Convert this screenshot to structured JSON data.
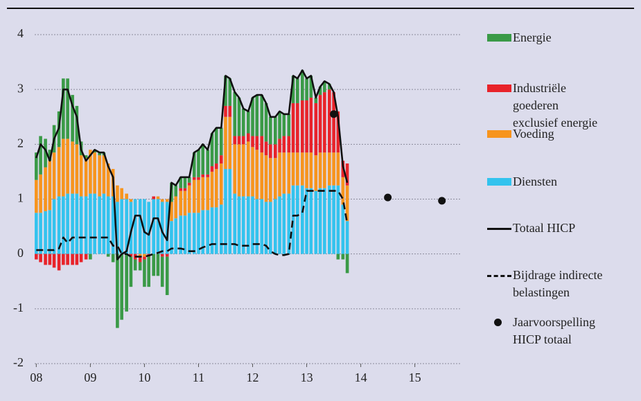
{
  "chart_data": {
    "type": "bar",
    "stacked": true,
    "grid": true,
    "xlim": [
      2007.97,
      2015.85
    ],
    "xticks": [
      {
        "value": 2008,
        "label": "08"
      },
      {
        "value": 2009,
        "label": "09"
      },
      {
        "value": 2010,
        "label": "10"
      },
      {
        "value": 2011,
        "label": "11"
      },
      {
        "value": 2012,
        "label": "12"
      },
      {
        "value": 2013,
        "label": "13"
      },
      {
        "value": 2014,
        "label": "14"
      },
      {
        "value": 2015,
        "label": "15"
      }
    ],
    "ylim": [
      -2,
      4
    ],
    "yticks": [
      -2,
      -1,
      0,
      1,
      2,
      3,
      4
    ],
    "x": [
      2008,
      2008.08,
      2008.17,
      2008.25,
      2008.33,
      2008.42,
      2008.5,
      2008.58,
      2008.67,
      2008.75,
      2008.83,
      2008.92,
      2009,
      2009.08,
      2009.17,
      2009.25,
      2009.33,
      2009.42,
      2009.5,
      2009.58,
      2009.67,
      2009.75,
      2009.83,
      2009.92,
      2010,
      2010.08,
      2010.17,
      2010.25,
      2010.33,
      2010.42,
      2010.5,
      2010.58,
      2010.67,
      2010.75,
      2010.83,
      2010.92,
      2011,
      2011.08,
      2011.17,
      2011.25,
      2011.33,
      2011.42,
      2011.5,
      2011.58,
      2011.67,
      2011.75,
      2011.83,
      2011.92,
      2012,
      2012.08,
      2012.17,
      2012.25,
      2012.33,
      2012.42,
      2012.5,
      2012.58,
      2012.67,
      2012.75,
      2012.83,
      2012.92,
      2013,
      2013.08,
      2013.17,
      2013.25,
      2013.33,
      2013.42,
      2013.5,
      2013.58,
      2013.67,
      2013.75
    ],
    "series": [
      {
        "name": "Energie",
        "color": "#3a9a47",
        "values": [
          0.5,
          0.7,
          0.52,
          0.2,
          0.5,
          0.65,
          1.1,
          1.1,
          0.85,
          0.7,
          0.25,
          0.05,
          -0.1,
          0.05,
          0.05,
          0.05,
          -0.05,
          -0.15,
          -1.35,
          -1.2,
          -1.05,
          -0.55,
          -0.2,
          -0.15,
          -0.5,
          -0.55,
          -0.4,
          -0.4,
          -0.55,
          -0.7,
          0.35,
          0.2,
          0.2,
          0.2,
          0.1,
          0.45,
          0.5,
          0.55,
          0.45,
          0.6,
          0.65,
          0.5,
          0.55,
          0.5,
          0.8,
          0.7,
          0.5,
          0.4,
          0.7,
          0.75,
          0.75,
          0.7,
          0.5,
          0.5,
          0.5,
          0.4,
          0.4,
          0.5,
          0.45,
          0.55,
          0.4,
          0.4,
          0.1,
          0.15,
          0.2,
          0.1,
          0,
          -0.1,
          -0.1,
          -0.35
        ]
      },
      {
        "name": "Industriële goederen exclusief energie",
        "color": "#e8232a",
        "values": [
          -0.1,
          -0.15,
          -0.2,
          -0.2,
          -0.25,
          -0.3,
          -0.2,
          -0.2,
          -0.2,
          -0.2,
          -0.15,
          -0.1,
          0,
          0,
          0,
          0,
          0,
          0,
          0,
          0,
          0,
          -0.05,
          -0.1,
          -0.1,
          -0.05,
          -0.05,
          0.05,
          0,
          -0.05,
          -0.05,
          0,
          0,
          0.05,
          0.05,
          0.05,
          0.05,
          0.05,
          0.05,
          0.05,
          0.1,
          0.1,
          0.15,
          0.2,
          0.2,
          0.15,
          0.15,
          0.15,
          0.15,
          0.2,
          0.25,
          0.3,
          0.25,
          0.25,
          0.25,
          0.25,
          0.3,
          0.3,
          0.9,
          0.9,
          0.95,
          0.95,
          1.0,
          0.95,
          1.05,
          1.1,
          1.15,
          1.1,
          0.75,
          0.3,
          0.4
        ]
      },
      {
        "name": "Voeding",
        "color": "#f7941d",
        "values": [
          0.6,
          0.7,
          0.8,
          0.9,
          0.85,
          0.9,
          1.05,
          1.0,
          0.95,
          0.9,
          0.75,
          0.7,
          0.8,
          0.75,
          0.75,
          0.7,
          0.6,
          0.5,
          0.3,
          0.2,
          0.1,
          0.05,
          0,
          -0.05,
          -0.05,
          0,
          0,
          0.05,
          0.05,
          0.05,
          0.35,
          0.4,
          0.45,
          0.45,
          0.5,
          0.6,
          0.6,
          0.6,
          0.6,
          0.65,
          0.7,
          0.75,
          0.95,
          0.95,
          0.9,
          0.95,
          0.95,
          1.0,
          0.9,
          0.9,
          0.85,
          0.85,
          0.8,
          0.75,
          0.8,
          0.75,
          0.75,
          0.6,
          0.6,
          0.6,
          0.65,
          0.65,
          0.65,
          0.65,
          0.65,
          0.6,
          0.6,
          0.6,
          0.5,
          0.65
        ]
      },
      {
        "name": "Diensten",
        "color": "#33c3ee",
        "values": [
          0.75,
          0.75,
          0.78,
          0.8,
          1.0,
          1.05,
          1.05,
          1.1,
          1.1,
          1.1,
          1.05,
          1.05,
          1.1,
          1.1,
          1.05,
          1.1,
          1.05,
          1.05,
          0.95,
          1.0,
          1.0,
          0.95,
          1.0,
          1.0,
          1.0,
          0.95,
          1.0,
          1.0,
          0.95,
          0.95,
          0.6,
          0.65,
          0.7,
          0.7,
          0.75,
          0.75,
          0.75,
          0.8,
          0.8,
          0.85,
          0.85,
          0.9,
          1.55,
          1.55,
          1.1,
          1.05,
          1.05,
          1.05,
          1.05,
          1.0,
          1.0,
          0.95,
          0.95,
          1.0,
          1.05,
          1.1,
          1.1,
          1.25,
          1.25,
          1.25,
          1.2,
          1.2,
          1.15,
          1.2,
          1.2,
          1.25,
          1.25,
          1.25,
          0.9,
          0.6
        ]
      }
    ],
    "lines": [
      {
        "name": "Totaal HICP",
        "color": "#111111",
        "dashed": false,
        "values": [
          1.75,
          2.0,
          1.9,
          1.7,
          2.1,
          2.3,
          3.0,
          3.0,
          2.7,
          2.5,
          1.9,
          1.7,
          1.8,
          1.9,
          1.85,
          1.85,
          1.6,
          1.4,
          -0.1,
          0,
          0.05,
          0.4,
          0.7,
          0.7,
          0.4,
          0.35,
          0.65,
          0.65,
          0.4,
          0.25,
          1.3,
          1.25,
          1.4,
          1.4,
          1.4,
          1.85,
          1.9,
          2.0,
          1.9,
          2.2,
          2.3,
          2.3,
          3.25,
          3.2,
          2.95,
          2.85,
          2.65,
          2.6,
          2.85,
          2.9,
          2.9,
          2.75,
          2.5,
          2.5,
          2.6,
          2.55,
          2.55,
          3.25,
          3.2,
          3.35,
          3.2,
          3.25,
          2.85,
          3.05,
          3.15,
          3.1,
          2.95,
          2.5,
          1.6,
          1.3
        ]
      },
      {
        "name": "Bijdrage indirecte belastingen",
        "color": "#111111",
        "dashed": true,
        "values": [
          0.07,
          0.07,
          0.07,
          0.07,
          0.07,
          0.1,
          0.3,
          0.2,
          0.3,
          0.3,
          0.3,
          0.3,
          0.3,
          0.3,
          0.3,
          0.3,
          0.3,
          0.15,
          0.15,
          0,
          0,
          -0.05,
          -0.05,
          -0.05,
          -0.05,
          -0.03,
          0,
          0.02,
          0.05,
          0.05,
          0.1,
          0.1,
          0.1,
          0.08,
          0.05,
          0.05,
          0.08,
          0.12,
          0.15,
          0.18,
          0.18,
          0.18,
          0.18,
          0.18,
          0.18,
          0.15,
          0.15,
          0.15,
          0.18,
          0.18,
          0.18,
          0.15,
          0.05,
          0,
          -0.02,
          -0.02,
          0,
          0.7,
          0.7,
          0.75,
          1.15,
          1.15,
          1.15,
          1.15,
          1.15,
          1.15,
          1.15,
          1.15,
          1.0,
          0.55
        ]
      }
    ],
    "forecast": {
      "name": "Jaarvoorspelling HICP totaal",
      "color": "#111111",
      "x": [
        2013.5,
        2014.5,
        2015.5
      ],
      "values": [
        2.55,
        1.03,
        0.97
      ]
    }
  }
}
